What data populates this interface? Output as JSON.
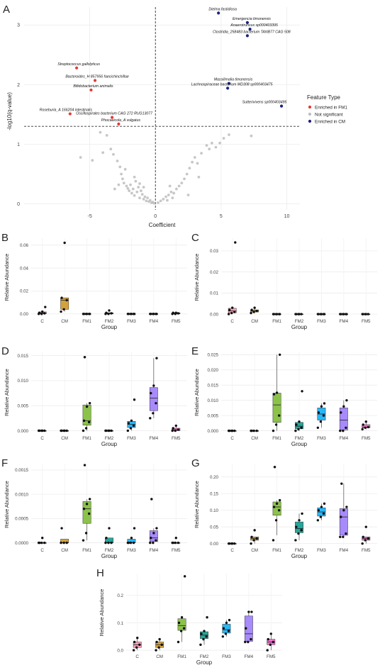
{
  "figure": {
    "panels": [
      "A",
      "B",
      "C",
      "D",
      "E",
      "F",
      "G",
      "H"
    ]
  },
  "colors": {
    "C": "#F8A0B8",
    "CM": "#D4A23C",
    "FM1": "#8BC34A",
    "FM2": "#26A69A",
    "FM3": "#29B6F6",
    "FM4": "#A78BFA",
    "FM5": "#F472D0",
    "enriched_fm1": "#E53935",
    "not_significant": "#BDBDBD",
    "enriched_cm": "#1A237E"
  },
  "chart_data": [
    {
      "panel": "A",
      "type": "scatter",
      "xlabel": "Coefficient",
      "ylabel": "-log10(q-value)",
      "xlim": [
        -10,
        11
      ],
      "ylim": [
        -0.1,
        3.3
      ],
      "xticks": [
        -5,
        0,
        5,
        10
      ],
      "yticks": [
        0,
        1,
        2,
        3
      ],
      "legend": {
        "title": "Feature Type",
        "position": "right",
        "entries": [
          "Enriched in FM1",
          "Not significant",
          "Enriched in CM"
        ]
      },
      "hline": 1.3,
      "vline": 0,
      "series": [
        {
          "name": "Enriched in FM1",
          "points": [
            {
              "x": -6.0,
              "y": 2.28,
              "label": "Streptococcus gallolyticus"
            },
            {
              "x": -4.6,
              "y": 2.07,
              "label": "Bacteroides_H 857956 faecichinchillae"
            },
            {
              "x": -4.9,
              "y": 1.91,
              "label": "Bifidobacterium animalis"
            },
            {
              "x": -6.5,
              "y": 1.51,
              "label": "Roseburia_A 166204 intestinalis"
            },
            {
              "x": -3.3,
              "y": 1.45,
              "label": "Oscillospirales bacterium CAG 272 RUG13077"
            },
            {
              "x": -2.8,
              "y": 1.34,
              "label": "Phocaeicola_A vulgatus"
            }
          ]
        },
        {
          "name": "Enriched in CM",
          "points": [
            {
              "x": 4.8,
              "y": 3.2,
              "label": "Dielma fastidiosa"
            },
            {
              "x": 7.0,
              "y": 3.04,
              "label": "Emergencia timonensis"
            },
            {
              "x": 7.2,
              "y": 2.93,
              "label": "Anaerotruncus sp000403395"
            },
            {
              "x": 7.0,
              "y": 2.82,
              "label": "Clostridia_258483 bacterium TANB77 CAG 508"
            },
            {
              "x": 5.6,
              "y": 2.02,
              "label": "Massilimalia timonensis"
            },
            {
              "x": 5.5,
              "y": 1.94,
              "label": "Lachnospiraceae bacterium MD308 sp000403475"
            },
            {
              "x": 9.6,
              "y": 1.64,
              "label": "Sutterivivens sp000403495"
            }
          ]
        },
        {
          "name": "Not significant",
          "points": [
            {
              "x": -5.7,
              "y": 0.78
            },
            {
              "x": -4.8,
              "y": 0.73
            },
            {
              "x": -4.2,
              "y": 1.2
            },
            {
              "x": -4.0,
              "y": 0.86
            },
            {
              "x": -3.7,
              "y": 1.15
            },
            {
              "x": -3.4,
              "y": 0.92
            },
            {
              "x": -3.2,
              "y": 0.83
            },
            {
              "x": -2.9,
              "y": 0.72
            },
            {
              "x": -2.7,
              "y": 0.62
            },
            {
              "x": -2.6,
              "y": 0.5
            },
            {
              "x": -2.5,
              "y": 0.42
            },
            {
              "x": -2.4,
              "y": 0.35
            },
            {
              "x": -2.2,
              "y": 0.3
            },
            {
              "x": -2.1,
              "y": 0.26
            },
            {
              "x": -2.0,
              "y": 0.22
            },
            {
              "x": -1.9,
              "y": 0.32
            },
            {
              "x": -1.8,
              "y": 0.18
            },
            {
              "x": -1.7,
              "y": 0.25
            },
            {
              "x": -1.6,
              "y": 0.14
            },
            {
              "x": -1.5,
              "y": 0.38
            },
            {
              "x": -1.4,
              "y": 0.2
            },
            {
              "x": -1.3,
              "y": 0.28
            },
            {
              "x": -1.2,
              "y": 0.1
            },
            {
              "x": -1.1,
              "y": 0.22
            },
            {
              "x": -1.0,
              "y": 0.16
            },
            {
              "x": -0.9,
              "y": 0.08
            },
            {
              "x": -0.8,
              "y": 0.12
            },
            {
              "x": -0.7,
              "y": 0.05
            },
            {
              "x": -0.6,
              "y": 0.1
            },
            {
              "x": -0.5,
              "y": 0.04
            },
            {
              "x": -0.4,
              "y": 0.06
            },
            {
              "x": -0.3,
              "y": 0.02
            },
            {
              "x": -0.2,
              "y": 0.03
            },
            {
              "x": -0.1,
              "y": 0.01
            },
            {
              "x": -2.3,
              "y": 0.58
            },
            {
              "x": -1.6,
              "y": 0.45
            },
            {
              "x": -2.8,
              "y": 0.32
            },
            {
              "x": -3.1,
              "y": 0.25
            },
            {
              "x": -1.2,
              "y": 0.34
            },
            {
              "x": -0.9,
              "y": 0.28
            },
            {
              "x": 0.2,
              "y": 0.02
            },
            {
              "x": 0.4,
              "y": 0.05
            },
            {
              "x": 0.6,
              "y": 0.08
            },
            {
              "x": 0.8,
              "y": 0.12
            },
            {
              "x": 1.0,
              "y": 0.15
            },
            {
              "x": 1.2,
              "y": 0.2
            },
            {
              "x": 1.4,
              "y": 0.18
            },
            {
              "x": 1.6,
              "y": 0.25
            },
            {
              "x": 1.8,
              "y": 0.3
            },
            {
              "x": 2.0,
              "y": 0.35
            },
            {
              "x": 2.2,
              "y": 0.42
            },
            {
              "x": 2.4,
              "y": 0.5
            },
            {
              "x": 2.6,
              "y": 0.6
            },
            {
              "x": 2.8,
              "y": 0.7
            },
            {
              "x": 3.0,
              "y": 0.78
            },
            {
              "x": 3.2,
              "y": 0.68
            },
            {
              "x": 3.5,
              "y": 0.85
            },
            {
              "x": 3.9,
              "y": 0.98
            },
            {
              "x": 4.1,
              "y": 0.92
            },
            {
              "x": 4.3,
              "y": 1.02
            },
            {
              "x": 4.6,
              "y": 0.95
            },
            {
              "x": 4.9,
              "y": 1.02
            },
            {
              "x": 5.2,
              "y": 1.1
            },
            {
              "x": 5.6,
              "y": 1.16
            },
            {
              "x": 7.3,
              "y": 1.14
            },
            {
              "x": 0.9,
              "y": 0.06
            },
            {
              "x": 1.3,
              "y": 0.1
            },
            {
              "x": 2.5,
              "y": 0.15
            },
            {
              "x": 1.1,
              "y": 0.3
            },
            {
              "x": 3.3,
              "y": 0.45
            }
          ]
        }
      ]
    },
    {
      "panel": "B",
      "type": "box",
      "xlabel": "Group",
      "ylabel": "Relative Abundance",
      "ylim": [
        -0.002,
        0.066
      ],
      "yticks": [
        0,
        0.02,
        0.04,
        0.06
      ],
      "ytick_labels": [
        "0.00",
        "0.02",
        "0.04",
        "0.06"
      ],
      "categories": [
        "C",
        "CM",
        "FM1",
        "FM2",
        "FM3",
        "FM4",
        "FM5"
      ],
      "points": [
        [
          0.0,
          0.0,
          0.0005,
          0.001,
          0.002,
          0.006
        ],
        [
          0.002,
          0.004,
          0.012,
          0.014,
          0.062
        ],
        [
          0.0,
          0.0,
          0.0,
          0.0,
          0.0,
          0.0
        ],
        [
          0.0,
          0.0,
          0.0005,
          0.001,
          0.003
        ],
        [
          0.0,
          0.0,
          0.0,
          0.0,
          0.0,
          0.0
        ],
        [
          0.0,
          0.0,
          0.0,
          0.0,
          0.0,
          0.0
        ],
        [
          0.0,
          0.0,
          0.0005,
          0.001,
          0.001
        ]
      ]
    },
    {
      "panel": "C",
      "type": "box",
      "xlabel": "Group",
      "ylabel": "Relative Abundance",
      "ylim": [
        -0.001,
        0.036
      ],
      "yticks": [
        0,
        0.01,
        0.02,
        0.03
      ],
      "ytick_labels": [
        "0.00",
        "0.01",
        "0.02",
        "0.03"
      ],
      "categories": [
        "C",
        "CM",
        "FM1",
        "FM2",
        "FM3",
        "FM4",
        "FM5"
      ],
      "points": [
        [
          0.0,
          0.0005,
          0.001,
          0.002,
          0.003,
          0.034
        ],
        [
          0.0005,
          0.001,
          0.0015,
          0.002,
          0.003
        ],
        [
          0.0,
          0.0,
          0.0,
          0.0,
          0.0,
          0.0
        ],
        [
          0.0,
          0.0,
          0.0,
          0.0,
          0.0
        ],
        [
          0.0,
          0.0,
          0.0,
          0.0,
          0.0,
          0.0
        ],
        [
          0.0,
          0.0,
          0.0,
          0.0,
          0.0,
          0.0
        ],
        [
          0.0,
          0.0,
          0.0,
          0.0,
          0.0
        ]
      ]
    },
    {
      "panel": "D",
      "type": "box",
      "xlabel": "Group",
      "ylabel": "Relative Abundance",
      "ylim": [
        -0.0005,
        0.0158
      ],
      "yticks": [
        0,
        0.005,
        0.01,
        0.015
      ],
      "ytick_labels": [
        "0.000",
        "0.005",
        "0.010",
        "0.015"
      ],
      "categories": [
        "C",
        "CM",
        "FM1",
        "FM2",
        "FM3",
        "FM4",
        "FM5"
      ],
      "points": [
        [
          0.0,
          0.0,
          0.0,
          0.0,
          0.0
        ],
        [
          0.0,
          0.0,
          0.0,
          0.0,
          0.0
        ],
        [
          0.0,
          0.0005,
          0.0017,
          0.002,
          0.0048,
          0.0055,
          0.0147
        ],
        [
          0.0,
          0.0,
          0.0,
          0.0,
          0.0
        ],
        [
          0.0,
          0.0005,
          0.001,
          0.0015,
          0.002,
          0.0062
        ],
        [
          0.0025,
          0.0035,
          0.0055,
          0.0075,
          0.009,
          0.0145
        ],
        [
          0.0,
          0.0,
          0.0002,
          0.0005,
          0.001
        ]
      ]
    },
    {
      "panel": "E",
      "type": "box",
      "xlabel": "Group",
      "ylabel": "Relative Abundance",
      "ylim": [
        -0.0008,
        0.026
      ],
      "yticks": [
        0,
        0.005,
        0.01,
        0.015,
        0.02,
        0.025
      ],
      "ytick_labels": [
        "0.000",
        "0.005",
        "0.010",
        "0.015",
        "0.020",
        "0.025"
      ],
      "categories": [
        "C",
        "CM",
        "FM1",
        "FM2",
        "FM3",
        "FM4",
        "FM5"
      ],
      "points": [
        [
          0.0,
          0.0,
          0.0,
          0.0,
          0.0
        ],
        [
          0.0,
          0.0,
          0.0,
          0.0
        ],
        [
          0.0,
          0.002,
          0.005,
          0.012,
          0.0125,
          0.025
        ],
        [
          0.0,
          0.0005,
          0.001,
          0.002,
          0.003,
          0.013
        ],
        [
          0.001,
          0.003,
          0.005,
          0.006,
          0.008,
          0.009
        ],
        [
          0.0,
          0.0,
          0.001,
          0.006,
          0.008,
          0.01
        ],
        [
          0.0005,
          0.001,
          0.0012,
          0.002,
          0.003
        ]
      ]
    },
    {
      "panel": "F",
      "type": "box",
      "xlabel": "Group",
      "ylabel": "Relative Abundance",
      "ylim": [
        -5e-05,
        0.00163
      ],
      "yticks": [
        0,
        0.0005,
        0.001,
        0.0015
      ],
      "ytick_labels": [
        "0.0000",
        "0.0005",
        "0.0010",
        "0.0015"
      ],
      "categories": [
        "C",
        "CM",
        "FM1",
        "FM2",
        "FM3",
        "FM4",
        "FM5"
      ],
      "points": [
        [
          0.0,
          0.0,
          0.0,
          0.0,
          0.0001
        ],
        [
          0.0,
          0.0,
          0.0,
          0.0003
        ],
        [
          5e-05,
          0.0002,
          0.0006,
          0.0007,
          0.0008,
          0.0009,
          0.0016
        ],
        [
          0.0,
          0.0,
          0.0,
          0.0001,
          0.0003
        ],
        [
          0.0,
          0.0,
          0.0,
          0.0,
          0.0001,
          0.0003
        ],
        [
          0.0,
          0.0,
          5e-05,
          0.0001,
          0.0002,
          0.0003,
          0.0009
        ],
        [
          0.0,
          0.0,
          0.0,
          0.0,
          0.0001
        ]
      ]
    },
    {
      "panel": "G",
      "type": "box",
      "xlabel": "Group",
      "ylabel": "Relative Abundance",
      "ylim": [
        -0.005,
        0.24
      ],
      "yticks": [
        0,
        0.05,
        0.1,
        0.15,
        0.2
      ],
      "ytick_labels": [
        "0.00",
        "0.05",
        "0.10",
        "0.15",
        "0.20"
      ],
      "categories": [
        "C",
        "CM",
        "FM1",
        "FM2",
        "FM3",
        "FM4",
        "FM5"
      ],
      "points": [
        [
          0.0,
          0.0,
          0.0,
          0.0,
          0.0
        ],
        [
          0.0,
          0.01,
          0.015,
          0.02,
          0.04
        ],
        [
          0.01,
          0.07,
          0.1,
          0.11,
          0.12,
          0.13,
          0.23
        ],
        [
          0.01,
          0.03,
          0.04,
          0.05,
          0.07,
          0.09
        ],
        [
          0.07,
          0.08,
          0.09,
          0.1,
          0.11,
          0.12
        ],
        [
          0.02,
          0.02,
          0.03,
          0.08,
          0.1,
          0.11,
          0.18
        ],
        [
          0.0,
          0.01,
          0.015,
          0.02,
          0.05
        ]
      ]
    },
    {
      "panel": "H",
      "type": "box",
      "xlabel": "Group",
      "ylabel": "Relative Abundance",
      "ylim": [
        -0.005,
        0.28
      ],
      "yticks": [
        0,
        0.1,
        0.2
      ],
      "ytick_labels": [
        "0.0",
        "0.1",
        "0.2"
      ],
      "categories": [
        "C",
        "CM",
        "FM1",
        "FM2",
        "FM3",
        "FM4",
        "FM5"
      ],
      "points": [
        [
          0.0,
          0.01,
          0.02,
          0.03,
          0.045
        ],
        [
          0.0,
          0.01,
          0.02,
          0.03,
          0.04
        ],
        [
          0.03,
          0.07,
          0.08,
          0.1,
          0.12,
          0.27
        ],
        [
          0.02,
          0.04,
          0.05,
          0.06,
          0.07,
          0.12
        ],
        [
          0.05,
          0.06,
          0.07,
          0.08,
          0.1,
          0.11
        ],
        [
          0.03,
          0.03,
          0.04,
          0.08,
          0.14,
          0.14
        ],
        [
          0.0,
          0.02,
          0.03,
          0.04,
          0.06
        ]
      ]
    }
  ]
}
